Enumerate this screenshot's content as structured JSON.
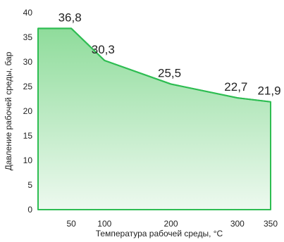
{
  "chart_data": {
    "type": "area",
    "xlabel": "Температура рабочей среды, °С",
    "ylabel": "Давление рабочей среды, бар",
    "xlim": [
      0,
      350
    ],
    "ylim": [
      0,
      40
    ],
    "x_ticks": [
      50,
      100,
      200,
      300,
      350
    ],
    "y_ticks": [
      0,
      5,
      10,
      15,
      20,
      25,
      30,
      35,
      40
    ],
    "x_tick_labels": [
      "50",
      "100",
      "200",
      "300",
      "350"
    ],
    "y_tick_labels": [
      "0",
      "5",
      "10",
      "15",
      "20",
      "25",
      "30",
      "35",
      "40"
    ],
    "points": [
      {
        "x": 0,
        "y": 36.8
      },
      {
        "x": 50,
        "y": 36.8
      },
      {
        "x": 100,
        "y": 30.3
      },
      {
        "x": 200,
        "y": 25.5
      },
      {
        "x": 300,
        "y": 22.7
      },
      {
        "x": 350,
        "y": 21.9
      }
    ],
    "data_labels": [
      {
        "x": 50,
        "y": 36.8,
        "text": "36,8"
      },
      {
        "x": 100,
        "y": 30.3,
        "text": "30,3"
      },
      {
        "x": 200,
        "y": 25.5,
        "text": "25,5"
      },
      {
        "x": 300,
        "y": 22.7,
        "text": "22,7"
      },
      {
        "x": 350,
        "y": 21.9,
        "text": "21,9"
      }
    ],
    "grid": false,
    "legend": "none",
    "colors": {
      "line": "#2ebd52",
      "fill_top": "#8fdc9b",
      "fill_bottom": "#edf9ef"
    }
  }
}
